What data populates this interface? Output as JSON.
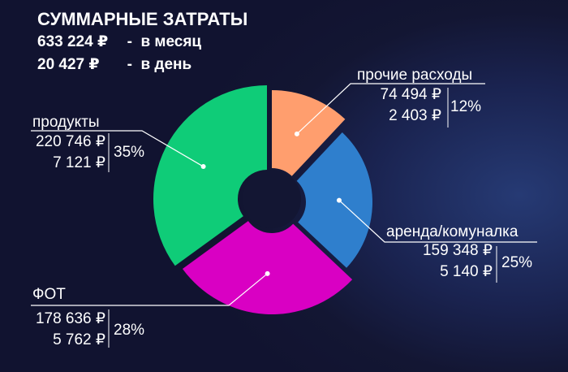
{
  "summary": {
    "title": "СУММАРНЫЕ ЗАТРАТЫ",
    "monthly_amount": "633 224 ₽",
    "monthly_label": "-  в месяц",
    "daily_amount": "20 427 ₽",
    "daily_label": "-  в день"
  },
  "chart_data": {
    "type": "pie",
    "series": [
      {
        "name": "прочие расходы",
        "monthly": "74 494 ₽",
        "daily": "2 403 ₽",
        "percent_label": "12%",
        "value": 12,
        "color": "#ff9e6e"
      },
      {
        "name": "аренда/комуналка",
        "monthly": "159 348 ₽",
        "daily": "5 140 ₽",
        "percent_label": "25%",
        "value": 25,
        "color": "#2f7fcd"
      },
      {
        "name": "ФОТ",
        "monthly": "178 636 ₽",
        "daily": "5 762 ₽",
        "percent_label": "28%",
        "value": 28,
        "color": "#d900c3"
      },
      {
        "name": "продукты",
        "monthly": "220 746 ₽",
        "daily": "7 121 ₽",
        "percent_label": "35%",
        "value": 35,
        "color": "#0fcc78"
      }
    ]
  }
}
